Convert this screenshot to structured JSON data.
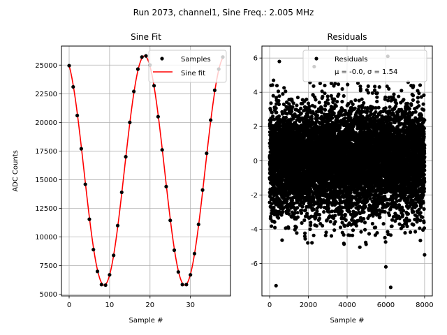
{
  "figure": {
    "suptitle": "Run 2073, channel1, Sine Freq.: 2.005 MHz"
  },
  "chart_data": [
    {
      "type": "line",
      "title": "Sine Fit",
      "xlabel": "Sample #",
      "ylabel": "ADC Counts",
      "xlim": [
        -1.9,
        39.9
      ],
      "ylim": [
        4860,
        26660
      ],
      "xticks": [
        0,
        10,
        20,
        30
      ],
      "yticks": [
        5000,
        7500,
        10000,
        12500,
        15000,
        17500,
        20000,
        22500,
        25000
      ],
      "grid": true,
      "legend": {
        "placement": "top-right",
        "entries": [
          "Samples",
          "Sine fit"
        ]
      },
      "series": [
        {
          "name": "Samples",
          "style": "points",
          "color": "#000000",
          "x": [
            0,
            1,
            2,
            3,
            4,
            5,
            6,
            7,
            8,
            9,
            10,
            11,
            12,
            13,
            14,
            15,
            16,
            17,
            18,
            19,
            20,
            21,
            22,
            23,
            24,
            25,
            26,
            27,
            28,
            29,
            30,
            31,
            32,
            33,
            34,
            35,
            36,
            37,
            38
          ],
          "y": [
            24950,
            23100,
            20600,
            17700,
            14600,
            11550,
            8900,
            7000,
            5850,
            5800,
            6700,
            8400,
            11000,
            13900,
            17000,
            20000,
            22700,
            24650,
            25700,
            25800,
            25000,
            23200,
            20500,
            17600,
            14400,
            11450,
            8850,
            6950,
            5850,
            5850,
            6700,
            8550,
            11100,
            14100,
            17300,
            20200,
            22800,
            24650,
            25700
          ]
        },
        {
          "name": "Sine fit",
          "style": "line",
          "color": "#ff0000",
          "x": [
            0,
            1,
            2,
            3,
            4,
            5,
            6,
            7,
            8,
            9,
            10,
            11,
            12,
            13,
            14,
            15,
            16,
            17,
            18,
            19,
            20,
            21,
            22,
            23,
            24,
            25,
            26,
            27,
            28,
            29,
            30,
            31,
            32,
            33,
            34,
            35,
            36,
            37,
            38
          ],
          "y": [
            24950,
            23100,
            20600,
            17700,
            14600,
            11550,
            8900,
            7000,
            5850,
            5800,
            6700,
            8400,
            11000,
            13900,
            17000,
            20000,
            22700,
            24650,
            25700,
            25800,
            25000,
            23200,
            20500,
            17600,
            14400,
            11450,
            8850,
            6950,
            5850,
            5850,
            6700,
            8550,
            11100,
            14100,
            17300,
            20200,
            22800,
            24650,
            25700
          ]
        }
      ]
    },
    {
      "type": "scatter",
      "title": "Residuals",
      "xlabel": "Sample #",
      "xlim": [
        -400,
        8400
      ],
      "ylim": [
        -7.9,
        6.7
      ],
      "xticks": [
        0,
        2000,
        4000,
        6000,
        8000
      ],
      "yticks": [
        -6,
        -4,
        -2,
        0,
        2,
        4,
        6
      ],
      "grid": true,
      "legend": {
        "placement": "top-right",
        "entries": [
          "Residuals",
          "$\\mu$ = -0.0, $\\sigma$ = 1.54"
        ],
        "entry_display": [
          "Residuals",
          "μ = -0.0, σ = 1.54"
        ]
      },
      "series": [
        {
          "name": "Residuals",
          "color": "#000000",
          "n_points": 8000,
          "x_range": [
            0,
            7999
          ],
          "mean": -0.0,
          "std": 1.54,
          "outliers": [
            [
              330,
              -7.3
            ],
            [
              6250,
              -7.4
            ],
            [
              6000,
              -6.2
            ],
            [
              8000,
              -5.5
            ],
            [
              500,
              5.8
            ],
            [
              6100,
              6.1
            ],
            [
              2300,
              5.5
            ],
            [
              200,
              4.7
            ]
          ]
        }
      ]
    }
  ]
}
